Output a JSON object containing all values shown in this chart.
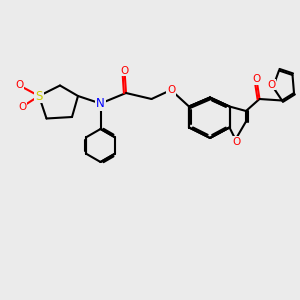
{
  "bg_color": "#ebebeb",
  "bond_color": "#000000",
  "atom_colors": {
    "O": "#ff0000",
    "N": "#0000ff",
    "S": "#cccc00",
    "C": "#000000"
  },
  "bond_lw": 1.5,
  "figsize": [
    3.0,
    3.0
  ],
  "dpi": 100
}
